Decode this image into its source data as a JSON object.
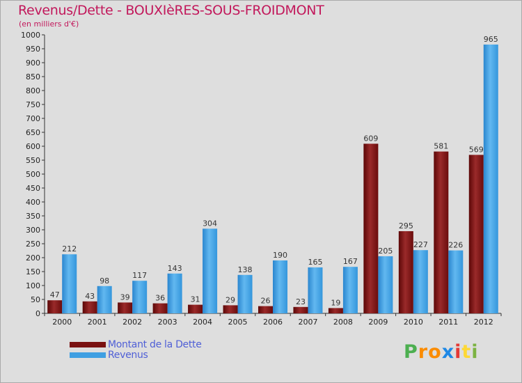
{
  "title": "Revenus/Dette - BOUXIèRES-SOUS-FROIDMONT",
  "subtitle": "(en milliers d'€)",
  "colors": {
    "dette": "#7a1111",
    "revenus": "#3f9fe2",
    "background": "#dedede",
    "title": "#c2185b",
    "legend_text": "#4f5fd6"
  },
  "chart_data": {
    "type": "bar",
    "title": "Revenus/Dette - BOUXIèRES-SOUS-FROIDMONT",
    "ylabel": "(en milliers d'€)",
    "xlabel": "",
    "categories": [
      "2000",
      "2001",
      "2002",
      "2003",
      "2004",
      "2005",
      "2006",
      "2007",
      "2008",
      "2009",
      "2010",
      "2011",
      "2012"
    ],
    "series": [
      {
        "name": "Montant de la Dette",
        "values": [
          47,
          43,
          39,
          36,
          31,
          29,
          26,
          23,
          19,
          609,
          295,
          581,
          569
        ]
      },
      {
        "name": "Revenus",
        "values": [
          212,
          98,
          117,
          143,
          304,
          138,
          190,
          165,
          167,
          205,
          227,
          226,
          965
        ]
      }
    ],
    "ylim": [
      0,
      1000
    ],
    "yticks": [
      0,
      50,
      100,
      150,
      200,
      250,
      300,
      350,
      400,
      450,
      500,
      550,
      600,
      650,
      700,
      750,
      800,
      850,
      900,
      950,
      1000
    ],
    "grid": false,
    "legend": "bottom-left"
  },
  "legend": {
    "items": [
      {
        "label": "Montant de la Dette",
        "color": "#7a1111"
      },
      {
        "label": "Revenus",
        "color": "#3f9fe2"
      }
    ]
  },
  "logo": {
    "letters": [
      "P",
      "r",
      "o",
      "x",
      "i",
      "t",
      "i"
    ],
    "colors": [
      "#4caf50",
      "#fb8c00",
      "#fb8c00",
      "#1e88e5",
      "#e53935",
      "#fdd835",
      "#7cb342"
    ]
  }
}
